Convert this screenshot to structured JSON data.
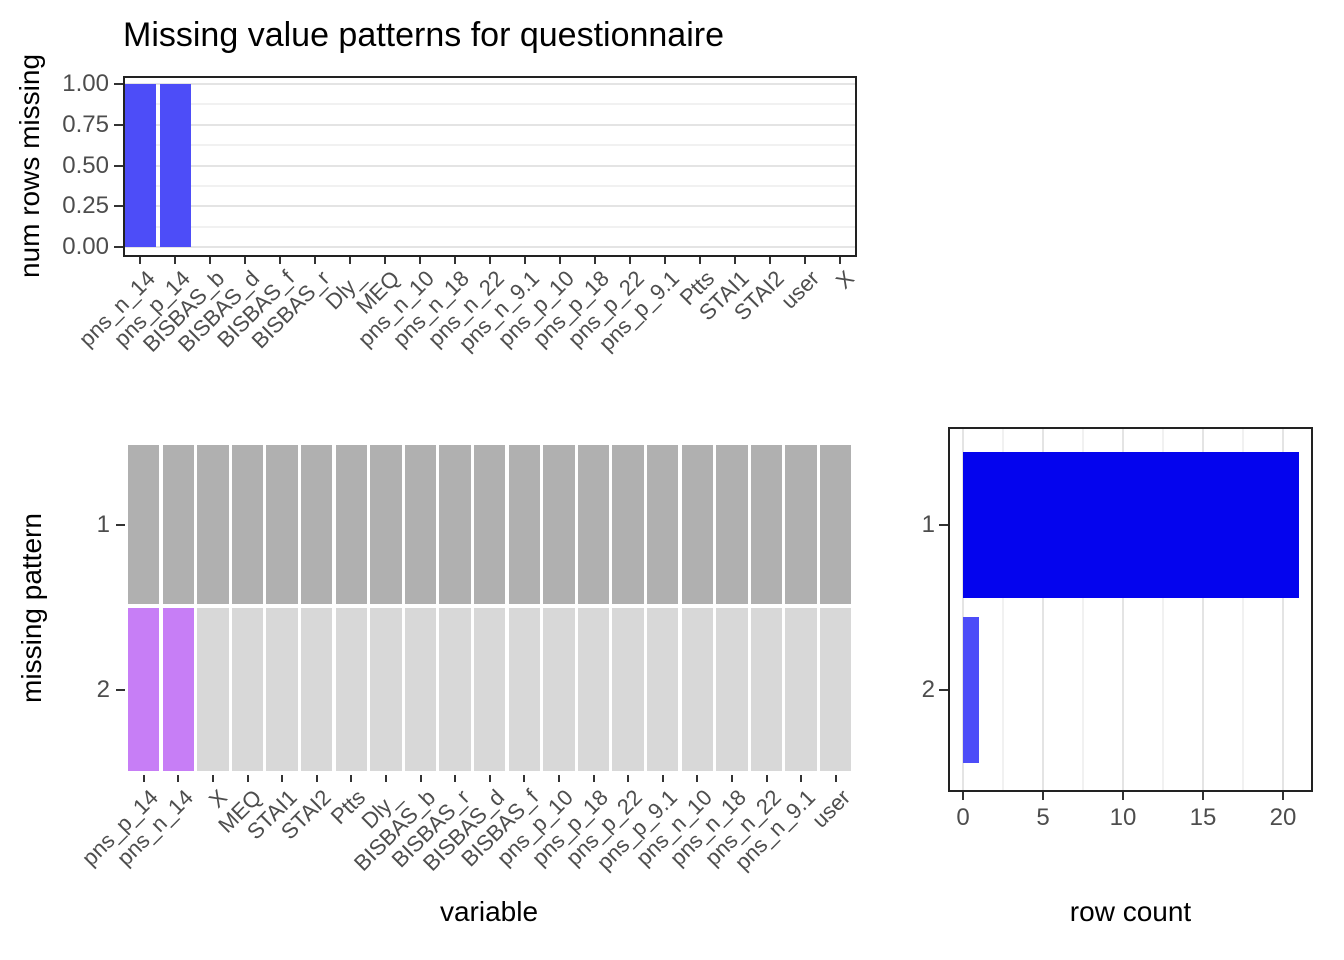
{
  "title": "Missing value patterns for questionnaire",
  "chart_data": [
    {
      "id": "num-rows-missing",
      "type": "bar",
      "orientation": "vertical",
      "ylabel": "num rows missing",
      "xlabel": "",
      "categories": [
        "pns_n_14",
        "pns_p_14",
        "BISBAS_b",
        "BISBAS_d",
        "BISBAS_f",
        "BISBAS_r",
        "Dly_",
        "MEQ",
        "pns_n_10",
        "pns_n_18",
        "pns_n_22",
        "pns_n_9.1",
        "pns_p_10",
        "pns_p_18",
        "pns_p_22",
        "pns_p_9.1",
        "Ptts",
        "STAI1",
        "STAI2",
        "user",
        "X"
      ],
      "values": [
        1,
        1,
        0,
        0,
        0,
        0,
        0,
        0,
        0,
        0,
        0,
        0,
        0,
        0,
        0,
        0,
        0,
        0,
        0,
        0,
        0
      ],
      "ylim": [
        0,
        1
      ],
      "yticks": [
        {
          "value": 0,
          "label": "0.00"
        },
        {
          "value": 0.25,
          "label": "0.25"
        },
        {
          "value": 0.5,
          "label": "0.50"
        },
        {
          "value": 0.75,
          "label": "0.75"
        },
        {
          "value": 1,
          "label": "1.00"
        }
      ],
      "minor_ticks": [
        0.125,
        0.375,
        0.625,
        0.875
      ],
      "grid": "horizontal",
      "bar_color": "#4D4DF8"
    },
    {
      "id": "missing-pattern",
      "type": "heatmap",
      "ylabel": "missing pattern",
      "xlabel": "variable",
      "categories": [
        "pns_p_14",
        "pns_n_14",
        "X",
        "MEQ",
        "STAI1",
        "STAI2",
        "Ptts",
        "Dly_",
        "BISBAS_b",
        "BISBAS_r",
        "BISBAS_d",
        "BISBAS_f",
        "pns_p_10",
        "pns_p_18",
        "pns_p_22",
        "pns_p_9.1",
        "pns_n_10",
        "pns_n_18",
        "pns_n_22",
        "pns_n_9.1",
        "user"
      ],
      "rows": [
        {
          "label": "1",
          "cells": [
            0,
            0,
            0,
            0,
            0,
            0,
            0,
            0,
            0,
            0,
            0,
            0,
            0,
            0,
            0,
            0,
            0,
            0,
            0,
            0,
            0
          ]
        },
        {
          "label": "2",
          "cells": [
            1,
            1,
            0,
            0,
            0,
            0,
            0,
            0,
            0,
            0,
            0,
            0,
            0,
            0,
            0,
            0,
            0,
            0,
            0,
            0,
            0
          ]
        }
      ],
      "colors": {
        "row1_observed": "#B0B0B0",
        "row2_observed": "#D8D8D8",
        "missing": "#C77EF6"
      }
    },
    {
      "id": "row-count",
      "type": "bar",
      "orientation": "horizontal",
      "ylabel": "",
      "xlabel": "row count",
      "categories": [
        "1",
        "2"
      ],
      "values": [
        21,
        1
      ],
      "xlim": [
        0,
        22
      ],
      "xticks": [
        {
          "value": 0,
          "label": "0"
        },
        {
          "value": 5,
          "label": "5"
        },
        {
          "value": 10,
          "label": "10"
        },
        {
          "value": 15,
          "label": "15"
        },
        {
          "value": 20,
          "label": "20"
        }
      ],
      "minor_ticks": [
        2.5,
        7.5,
        12.5,
        17.5
      ],
      "grid": "vertical",
      "bar_colors": [
        "#0404EE",
        "#4D4DF8"
      ]
    }
  ]
}
